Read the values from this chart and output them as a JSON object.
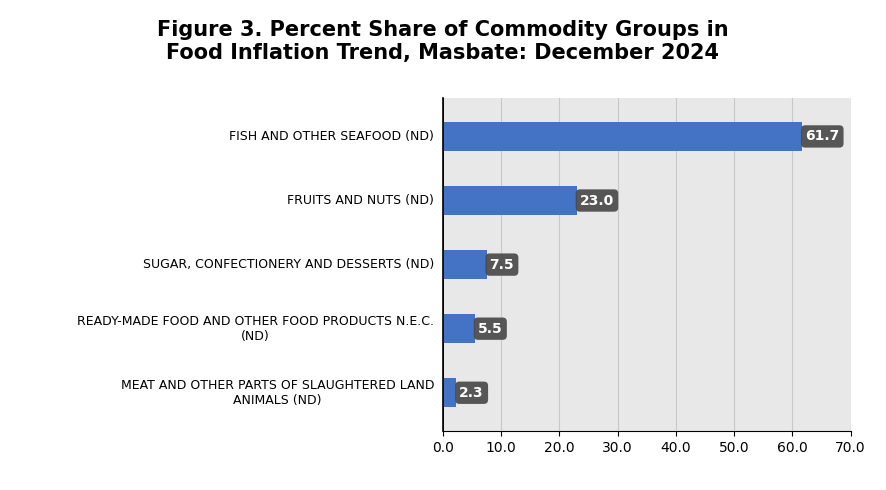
{
  "title": "Figure 3. Percent Share of Commodity Groups in\nFood Inflation Trend, Masbate: December 2024",
  "categories": [
    "MEAT AND OTHER PARTS OF SLAUGHTERED LAND\nANIMALS (ND)",
    "READY-MADE FOOD AND OTHER FOOD PRODUCTS N.E.C.\n(ND)",
    "SUGAR, CONFECTIONERY AND DESSERTS (ND)",
    "FRUITS AND NUTS (ND)",
    "FISH AND OTHER SEAFOOD (ND)"
  ],
  "values": [
    2.3,
    5.5,
    7.5,
    23.0,
    61.7
  ],
  "bar_color": "#4472C4",
  "label_bg_color": "#4a4a4a",
  "label_text_color": "#ffffff",
  "xlim": [
    0,
    70.0
  ],
  "xticks": [
    0.0,
    10.0,
    20.0,
    30.0,
    40.0,
    50.0,
    60.0,
    70.0
  ],
  "grid_color": "#c8c8c8",
  "chart_bg_color": "#e8e8e8",
  "left_bg_color": "#ffffff",
  "title_fontsize": 15,
  "tick_fontsize": 10,
  "label_fontsize": 9,
  "bar_height": 0.45
}
